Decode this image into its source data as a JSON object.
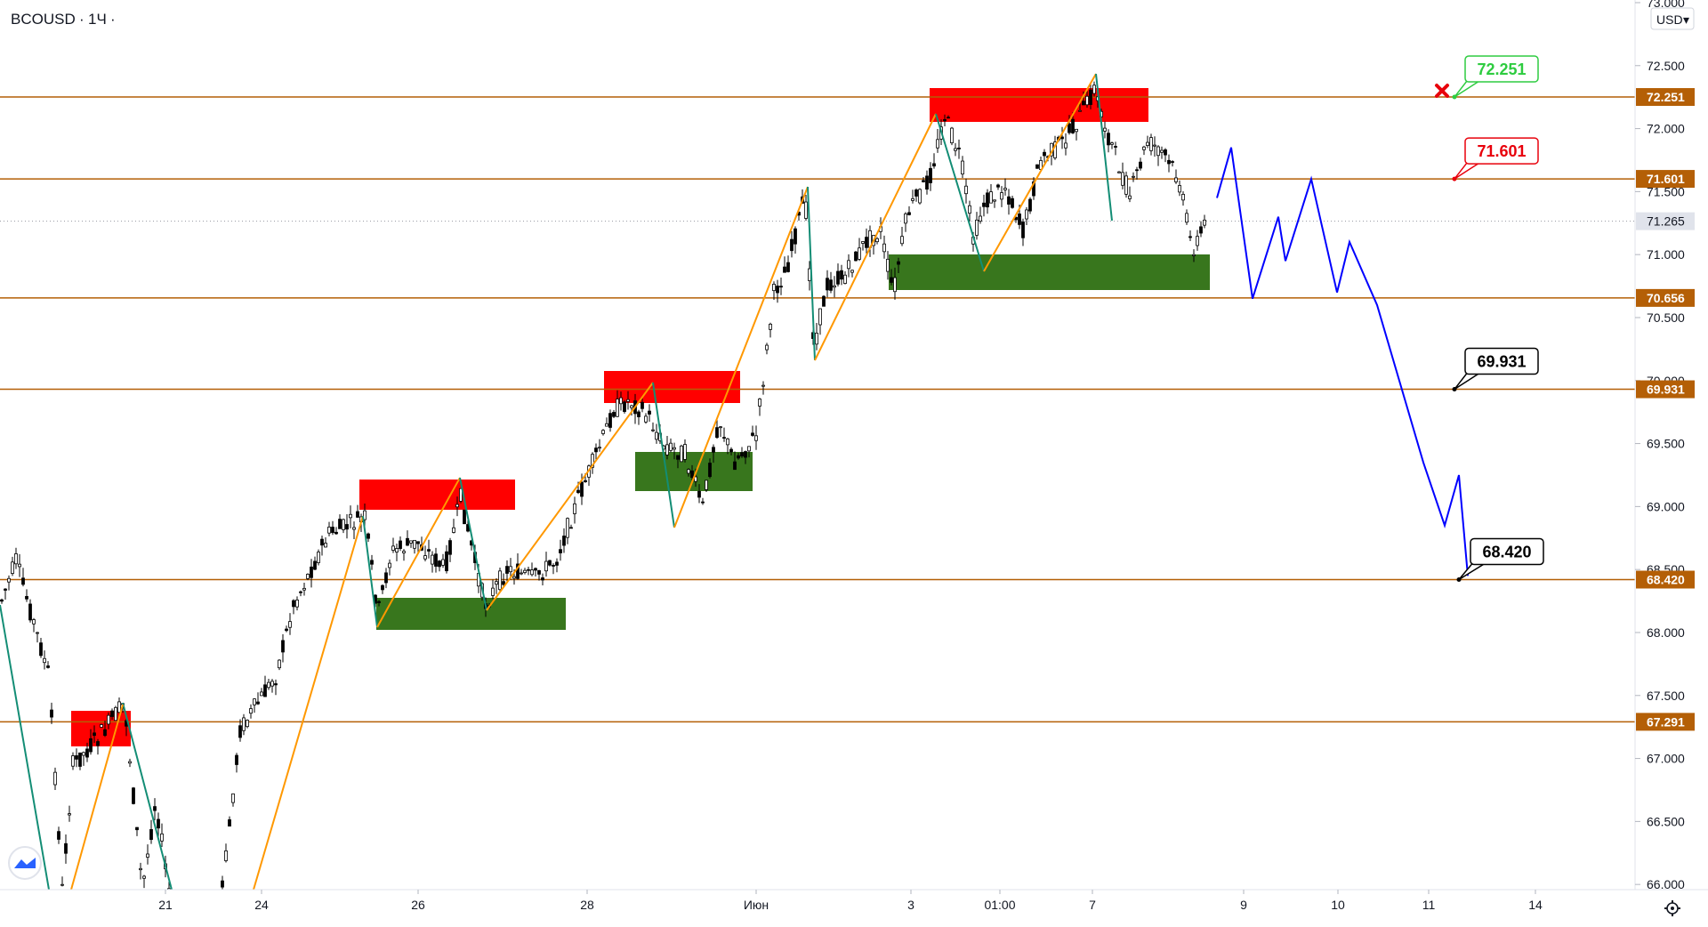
{
  "chart_data": {
    "type": "candlestick",
    "symbol": "BCOUSD",
    "timeframe": "1Ч",
    "currency": "USD",
    "ylim": [
      65.9,
      73.0
    ],
    "y_ticks": [
      "66.000",
      "66.500",
      "67.000",
      "67.500",
      "68.000",
      "68.500",
      "69.000",
      "69.500",
      "70.000",
      "70.500",
      "71.000",
      "71.500",
      "72.000",
      "72.500",
      "73.000"
    ],
    "x_ticks": [
      "21",
      "24",
      "26",
      "28",
      "Июн",
      "3",
      "01:00",
      "7",
      "9",
      "10",
      "11",
      "14"
    ],
    "last_price": "71.265",
    "levels": [
      "72.251",
      "71.601",
      "70.656",
      "69.931",
      "68.420",
      "67.291"
    ],
    "callouts": [
      {
        "label": "72.251",
        "color": "#2ecc40"
      },
      {
        "label": "71.601",
        "color": "#e8000b"
      },
      {
        "label": "69.931",
        "color": "#000000"
      },
      {
        "label": "68.420",
        "color": "#000000"
      }
    ],
    "forecast_path": [
      71.45,
      71.85,
      70.65,
      71.3,
      70.95,
      71.6,
      70.7,
      71.1,
      70.6,
      69.35,
      68.85,
      69.25,
      68.45
    ],
    "colors": {
      "level_line": "#b45f06",
      "level_tag": "#b45f06",
      "supply_zone": "#ff0000",
      "demand_zone": "#38761d",
      "swing_up": "#ff9800",
      "swing_down": "#138d75",
      "forecast": "#0000ff",
      "last_price_tag": "#e0e3eb"
    }
  }
}
